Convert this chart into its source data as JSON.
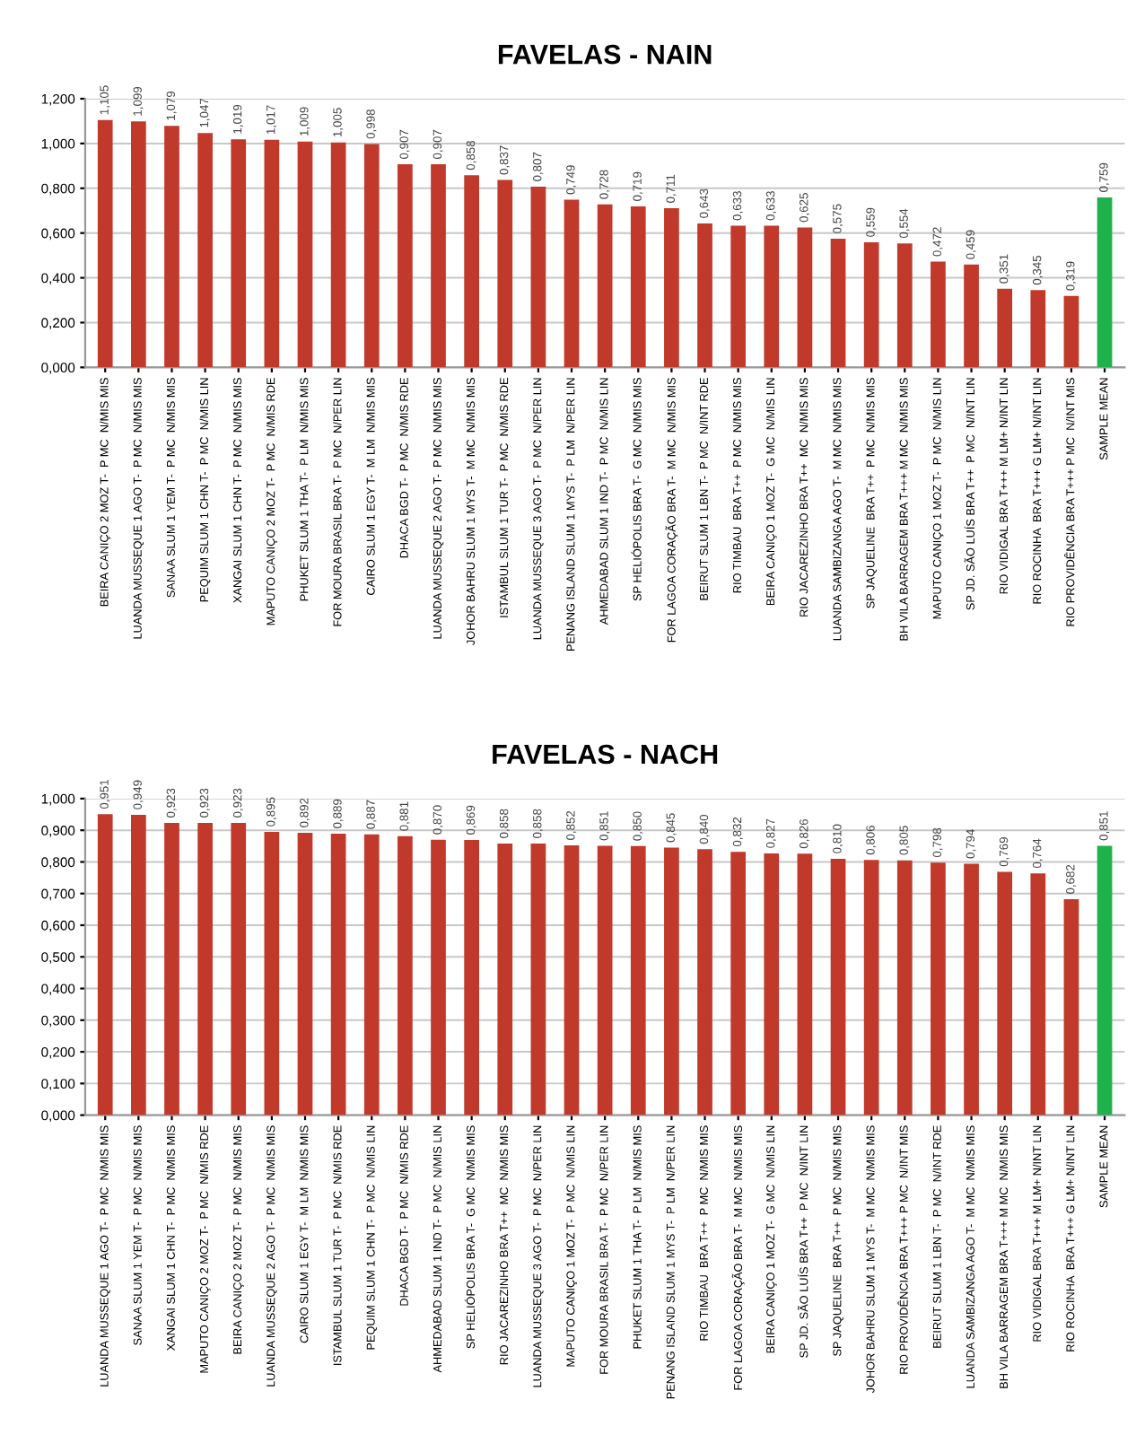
{
  "chart_data": [
    {
      "type": "bar",
      "title": "FAVELAS - NAIN",
      "categories": [
        "BEIRA CANIÇO 2 MOZ T-  P MC  N/MIS MIS",
        "LUANDA MUSSEQUE 1 AGO T-  P MC  N/MIS MIS",
        "SANAA SLUM 1 YEM T-  P MC  N/MIS MIS",
        "PEQUIM SLUM 1 CHN T-  P MC  N/MIS LIN",
        "XANGAI SLUM 1 CHN T-  P MC  N/MIS MIS",
        "MAPUTO CANIÇO 2 MOZ T-  P MC  N/MIS RDE",
        "PHUKET SLUM 1 THA T-  P LM  N/MIS MIS",
        "FOR MOURA BRASIL BRA T-  P MC  N/PER LIN",
        "CAIRO SLUM 1 EGY T-  M LM  N/MIS MIS",
        "DHACA BGD T-  P MC  N/MIS RDE",
        "LUANDA MUSSEQUE 2 AGO T-  P MC  N/MIS MIS",
        "JOHOR BAHRU SLUM 1 MYS T-  M MC  N/MIS MIS",
        "ISTAMBUL SLUM 1 TUR T-  P MC  N/MIS RDE",
        "LUANDA MUSSEQUE 3 AGO T-  P MC  N/PER LIN",
        "PENANG ISLAND SLUM 1 MYS T-  P LM  N/PER LIN",
        "AHMEDABAD SLUM 1 IND T-  P MC  N/MIS LIN",
        "SP HELIÓPOLIS BRA T-  G MC  N/MIS MIS",
        "FOR LAGOA CORAÇÃO BRA T-  M MC  N/MIS MIS",
        "BEIRUT SLUM 1 LBN T-  P MC  N/INT RDE",
        "RIO TIMBAU  BRA T++  P MC  N/MIS MIS",
        "BEIRA CANIÇO 1 MOZ T-  G MC  N/MIS LIN",
        "RIO JACAREZINHO BRA T++  MC  N/MIS MIS",
        "LUANDA SAMBIZANGA AGO T-  M MC  N/MIS MIS",
        "SP JAQUELINE  BRA T++  P MC  N/MIS MIS",
        "BH VILA BARRAGEM BRA T+++ M MC  N/MIS MIS",
        "MAPUTO CANIÇO 1 MOZ T-  P MC  N/MIS LIN",
        "SP JD. SÃO LUÍS BRA T++  P MC  N/INT LIN",
        "RIO VIDIGAL BRA T+++ M LM+ N/INT LIN",
        "RIO ROCINHA  BRA T+++ G LM+ N/INT LIN",
        "RIO PROVIDÊNCIA BRA T+++ P MC  N/INT MIS",
        "SAMPLE MEAN"
      ],
      "values": [
        1.105,
        1.099,
        1.079,
        1.047,
        1.019,
        1.017,
        1.009,
        1.005,
        0.998,
        0.907,
        0.907,
        0.858,
        0.837,
        0.807,
        0.749,
        0.728,
        0.719,
        0.711,
        0.643,
        0.633,
        0.633,
        0.625,
        0.575,
        0.559,
        0.554,
        0.472,
        0.459,
        0.351,
        0.345,
        0.319,
        0.759
      ],
      "value_labels": [
        "1,105",
        "1,099",
        "1,079",
        "1,047",
        "1,019",
        "1,017",
        "1,009",
        "1,005",
        "0,998",
        "0,907",
        "0,907",
        "0,858",
        "0,837",
        "0,807",
        "0,749",
        "0,728",
        "0,719",
        "0,711",
        "0,643",
        "0,633",
        "0,633",
        "0,625",
        "0,575",
        "0,559",
        "0,554",
        "0,472",
        "0,459",
        "0,351",
        "0,345",
        "0,319",
        "0,759"
      ],
      "colors": [
        "#c0392b",
        "#c0392b",
        "#c0392b",
        "#c0392b",
        "#c0392b",
        "#c0392b",
        "#c0392b",
        "#c0392b",
        "#c0392b",
        "#c0392b",
        "#c0392b",
        "#c0392b",
        "#c0392b",
        "#c0392b",
        "#c0392b",
        "#c0392b",
        "#c0392b",
        "#c0392b",
        "#c0392b",
        "#c0392b",
        "#c0392b",
        "#c0392b",
        "#c0392b",
        "#c0392b",
        "#c0392b",
        "#c0392b",
        "#c0392b",
        "#c0392b",
        "#c0392b",
        "#c0392b",
        "#1fb14c"
      ],
      "ylim": [
        0,
        1.2
      ],
      "yticks": [
        {
          "value": 0,
          "label": "0,000"
        },
        {
          "value": 0.2,
          "label": "0,200"
        },
        {
          "value": 0.4,
          "label": "0,400"
        },
        {
          "value": 0.6,
          "label": "0,600"
        },
        {
          "value": 0.8,
          "label": "0,800"
        },
        {
          "value": 1.0,
          "label": "1,000"
        },
        {
          "value": 1.2,
          "label": "1,200"
        }
      ],
      "grid": "y"
    },
    {
      "type": "bar",
      "title": "FAVELAS - NACH",
      "categories": [
        "LUANDA MUSSEQUE 1 AGO T-  P MC  N/MIS MIS",
        "SANAA SLUM 1 YEM T-  P MC  N/MIS MIS",
        "XANGAI SLUM 1 CHN T-  P MC  N/MIS MIS",
        "MAPUTO CANIÇO 2 MOZ T-  P MC  N/MIS RDE",
        "BEIRA CANIÇO 2 MOZ T-  P MC  N/MIS MIS",
        "LUANDA MUSSEQUE 2 AGO T-  P MC  N/MIS MIS",
        "CAIRO SLUM 1 EGY T-  M LM  N/MIS MIS",
        "ISTAMBUL SLUM 1 TUR T-  P MC  N/MIS RDE",
        "PEQUIM SLUM 1 CHN T-  P MC  N/MIS LIN",
        "DHACA BGD T-  P MC  N/MIS RDE",
        "AHMEDABAD SLUM 1 IND T-  P MC  N/MIS LIN",
        "SP HELIÓPOLIS BRA T-  G MC  N/MIS MIS",
        "RIO JACAREZINHO BRA T++  MC  N/MIS MIS",
        "LUANDA MUSSEQUE 3 AGO T-  P MC  N/PER LIN",
        "MAPUTO CANIÇO 1 MOZ T-  P MC  N/MIS LIN",
        "FOR MOURA BRASIL BRA T-  P MC  N/PER LIN",
        "PHUKET SLUM 1 THA T-  P LM  N/MIS MIS",
        "PENANG ISLAND SLUM 1 MYS T-  P LM  N/PER LIN",
        "RIO TIMBAU  BRA T++  P MC  N/MIS MIS",
        "FOR LAGOA CORAÇÃO BRA T-  M MC  N/MIS MIS",
        "BEIRA CANIÇO 1 MOZ T-  G MC  N/MIS LIN",
        "SP JD. SÃO LUÍS BRA T++  P MC  N/INT LIN",
        "SP JAQUELINE  BRA T++  P MC  N/MIS MIS",
        "JOHOR BAHRU SLUM 1 MYS T-  M MC  N/MIS MIS",
        "RIO PROVIDÊNCIA BRA T+++ P MC  N/INT MIS",
        "BEIRUT SLUM 1 LBN T-  P MC  N/INT RDE",
        "LUANDA SAMBIZANGA AGO T-  M MC  N/MIS MIS",
        "BH VILA BARRAGEM BRA T+++ M MC  N/MIS MIS",
        "RIO VIDIGAL BRA T+++ M LM+ N/INT LIN",
        "RIO ROCINHA  BRA T+++ G LM+ N/INT LIN",
        "SAMPLE MEAN"
      ],
      "values": [
        0.951,
        0.949,
        0.923,
        0.923,
        0.923,
        0.895,
        0.892,
        0.889,
        0.887,
        0.881,
        0.87,
        0.869,
        0.858,
        0.858,
        0.852,
        0.851,
        0.85,
        0.845,
        0.84,
        0.832,
        0.827,
        0.826,
        0.81,
        0.806,
        0.805,
        0.798,
        0.794,
        0.769,
        0.764,
        0.682,
        0.851
      ],
      "value_labels": [
        "0,951",
        "0,949",
        "0,923",
        "0,923",
        "0,923",
        "0,895",
        "0,892",
        "0,889",
        "0,887",
        "0,881",
        "0,870",
        "0,869",
        "0,858",
        "0,858",
        "0,852",
        "0,851",
        "0,850",
        "0,845",
        "0,840",
        "0,832",
        "0,827",
        "0,826",
        "0,810",
        "0,806",
        "0,805",
        "0,798",
        "0,794",
        "0,769",
        "0,764",
        "0,682",
        "0,851"
      ],
      "colors": [
        "#c0392b",
        "#c0392b",
        "#c0392b",
        "#c0392b",
        "#c0392b",
        "#c0392b",
        "#c0392b",
        "#c0392b",
        "#c0392b",
        "#c0392b",
        "#c0392b",
        "#c0392b",
        "#c0392b",
        "#c0392b",
        "#c0392b",
        "#c0392b",
        "#c0392b",
        "#c0392b",
        "#c0392b",
        "#c0392b",
        "#c0392b",
        "#c0392b",
        "#c0392b",
        "#c0392b",
        "#c0392b",
        "#c0392b",
        "#c0392b",
        "#c0392b",
        "#c0392b",
        "#c0392b",
        "#1fb14c"
      ],
      "ylim": [
        0,
        1.0
      ],
      "yticks": [
        {
          "value": 0,
          "label": "0,000"
        },
        {
          "value": 0.1,
          "label": "0,100"
        },
        {
          "value": 0.2,
          "label": "0,200"
        },
        {
          "value": 0.3,
          "label": "0,300"
        },
        {
          "value": 0.4,
          "label": "0,400"
        },
        {
          "value": 0.5,
          "label": "0,500"
        },
        {
          "value": 0.6,
          "label": "0,600"
        },
        {
          "value": 0.7,
          "label": "0,700"
        },
        {
          "value": 0.8,
          "label": "0,800"
        },
        {
          "value": 0.9,
          "label": "0,900"
        },
        {
          "value": 1.0,
          "label": "1,000"
        }
      ],
      "grid": "y"
    }
  ]
}
